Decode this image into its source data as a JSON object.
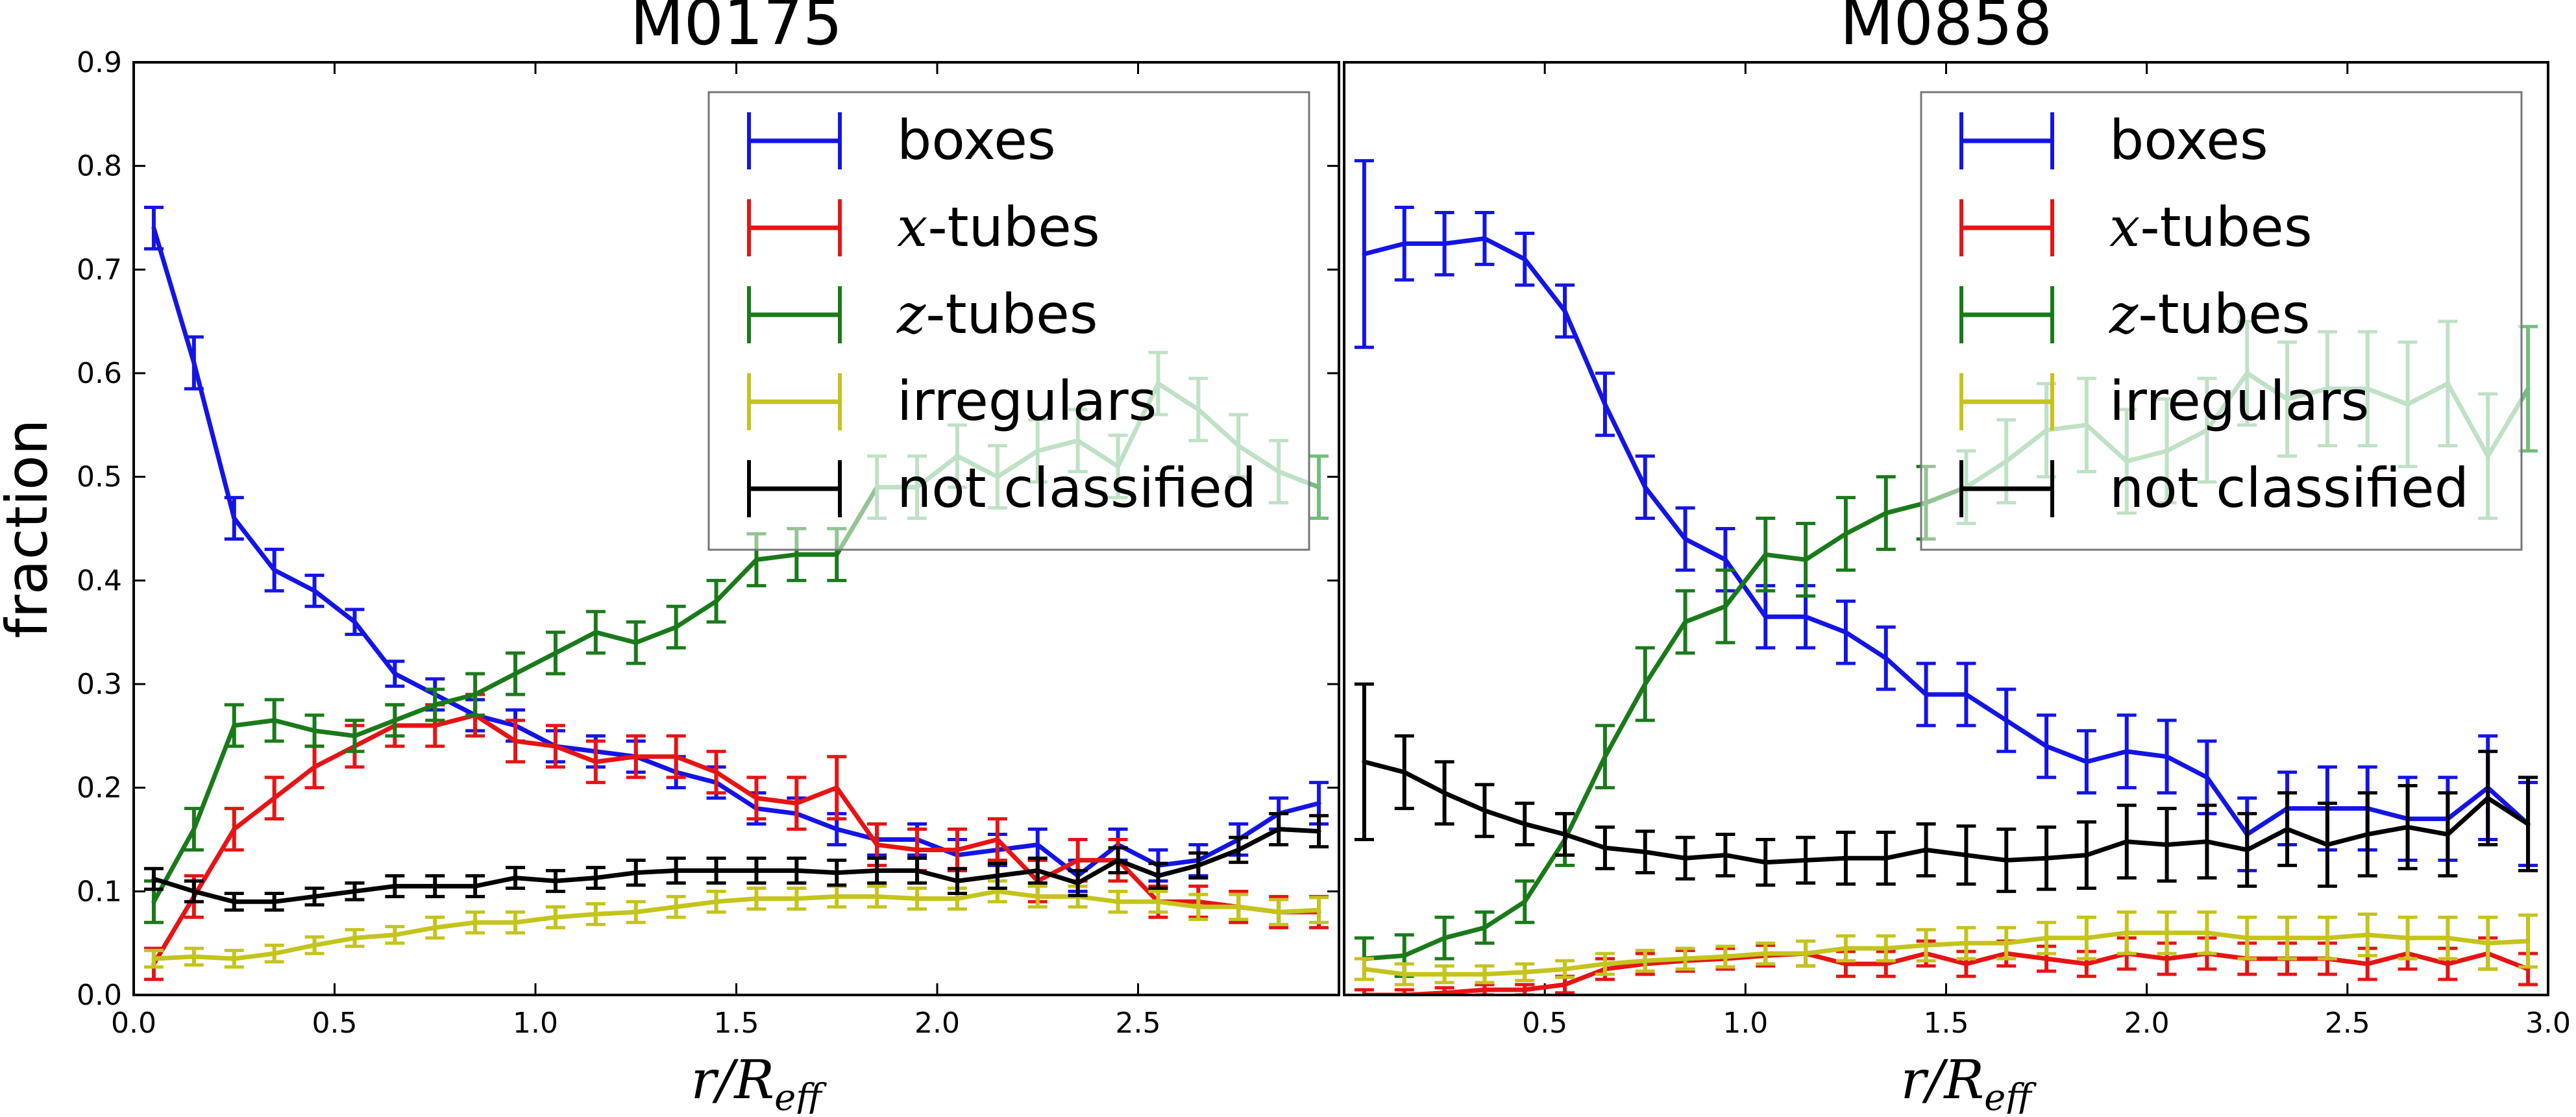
{
  "colors": {
    "boxes": "#1414e6",
    "x_tubes": "#e61414",
    "z_tubes": "#1a7a1a",
    "z_tubes_light": "#72bd80",
    "irregulars": "#c4c41c",
    "not_classified": "#000000"
  },
  "chart_data": [
    {
      "type": "line",
      "title": "M0175",
      "xlabel": "r/R",
      "xlabel_sub": "eff",
      "ylabel": "fraction",
      "xlim": [
        0.0,
        3.0
      ],
      "ylim": [
        0.0,
        0.9
      ],
      "xticks": [
        "0.0",
        "0.5",
        "1.0",
        "1.5",
        "2.0",
        "2.5"
      ],
      "yticks": [
        "0.0",
        "0.1",
        "0.2",
        "0.3",
        "0.4",
        "0.5",
        "0.6",
        "0.7",
        "0.8",
        "0.9"
      ],
      "legend_position": "top-right",
      "x": [
        0.05,
        0.15,
        0.25,
        0.35,
        0.45,
        0.55,
        0.65,
        0.75,
        0.85,
        0.95,
        1.05,
        1.15,
        1.25,
        1.35,
        1.45,
        1.55,
        1.65,
        1.75,
        1.85,
        1.95,
        2.05,
        2.15,
        2.25,
        2.35,
        2.45,
        2.55,
        2.65,
        2.75,
        2.85,
        2.95
      ],
      "series": [
        {
          "name": "boxes",
          "math_prefix": "",
          "label": "boxes",
          "color_key": "boxes",
          "values": [
            0.74,
            0.61,
            0.46,
            0.41,
            0.39,
            0.36,
            0.31,
            0.29,
            0.27,
            0.26,
            0.24,
            0.235,
            0.23,
            0.215,
            0.205,
            0.18,
            0.175,
            0.16,
            0.15,
            0.15,
            0.135,
            0.14,
            0.145,
            0.115,
            0.145,
            0.125,
            0.13,
            0.15,
            0.175,
            0.185
          ],
          "errors": [
            0.02,
            0.025,
            0.02,
            0.02,
            0.015,
            0.012,
            0.012,
            0.015,
            0.015,
            0.015,
            0.015,
            0.015,
            0.015,
            0.015,
            0.015,
            0.015,
            0.015,
            0.015,
            0.015,
            0.015,
            0.015,
            0.015,
            0.015,
            0.015,
            0.015,
            0.015,
            0.015,
            0.015,
            0.015,
            0.02
          ]
        },
        {
          "name": "x-tubes",
          "math_prefix": "x",
          "label": "-tubes",
          "color_key": "x_tubes",
          "values": [
            0.03,
            0.095,
            0.16,
            0.19,
            0.22,
            0.24,
            0.26,
            0.26,
            0.27,
            0.245,
            0.24,
            0.225,
            0.23,
            0.23,
            0.215,
            0.19,
            0.185,
            0.2,
            0.145,
            0.14,
            0.14,
            0.15,
            0.11,
            0.13,
            0.13,
            0.09,
            0.09,
            0.085,
            0.08,
            0.08
          ],
          "errors": [
            0.015,
            0.02,
            0.02,
            0.02,
            0.02,
            0.02,
            0.02,
            0.02,
            0.02,
            0.02,
            0.02,
            0.02,
            0.02,
            0.02,
            0.02,
            0.02,
            0.025,
            0.03,
            0.02,
            0.02,
            0.02,
            0.02,
            0.02,
            0.02,
            0.02,
            0.015,
            0.015,
            0.015,
            0.015,
            0.015
          ]
        },
        {
          "name": "z-tubes",
          "math_prefix": "z",
          "label": "-tubes",
          "color_key": "z_tubes",
          "light_from_x": 1.8,
          "values": [
            0.09,
            0.16,
            0.26,
            0.265,
            0.255,
            0.25,
            0.265,
            0.28,
            0.29,
            0.31,
            0.33,
            0.35,
            0.34,
            0.355,
            0.38,
            0.42,
            0.425,
            0.425,
            0.49,
            0.49,
            0.52,
            0.5,
            0.525,
            0.535,
            0.51,
            0.59,
            0.565,
            0.53,
            0.505,
            0.49
          ],
          "errors": [
            0.02,
            0.02,
            0.02,
            0.02,
            0.015,
            0.015,
            0.015,
            0.015,
            0.02,
            0.02,
            0.02,
            0.02,
            0.02,
            0.02,
            0.02,
            0.025,
            0.025,
            0.025,
            0.03,
            0.03,
            0.03,
            0.03,
            0.03,
            0.03,
            0.03,
            0.03,
            0.03,
            0.03,
            0.03,
            0.03
          ]
        },
        {
          "name": "irregulars",
          "math_prefix": "",
          "label": "irregulars",
          "color_key": "irregulars",
          "values": [
            0.035,
            0.037,
            0.035,
            0.04,
            0.048,
            0.055,
            0.058,
            0.065,
            0.07,
            0.07,
            0.075,
            0.078,
            0.08,
            0.085,
            0.09,
            0.093,
            0.093,
            0.095,
            0.095,
            0.093,
            0.093,
            0.1,
            0.095,
            0.095,
            0.09,
            0.09,
            0.085,
            0.085,
            0.08,
            0.082
          ],
          "errors": [
            0.008,
            0.008,
            0.008,
            0.008,
            0.008,
            0.008,
            0.008,
            0.01,
            0.01,
            0.01,
            0.01,
            0.01,
            0.01,
            0.01,
            0.01,
            0.01,
            0.01,
            0.01,
            0.01,
            0.01,
            0.01,
            0.01,
            0.01,
            0.01,
            0.01,
            0.01,
            0.012,
            0.012,
            0.012,
            0.012
          ]
        },
        {
          "name": "not classified",
          "math_prefix": "",
          "label": "not classified",
          "color_key": "not_classified",
          "values": [
            0.112,
            0.1,
            0.09,
            0.09,
            0.095,
            0.1,
            0.105,
            0.105,
            0.105,
            0.113,
            0.11,
            0.113,
            0.118,
            0.12,
            0.12,
            0.12,
            0.12,
            0.118,
            0.12,
            0.12,
            0.11,
            0.115,
            0.12,
            0.108,
            0.13,
            0.115,
            0.125,
            0.14,
            0.16,
            0.158
          ],
          "errors": [
            0.01,
            0.01,
            0.008,
            0.008,
            0.008,
            0.008,
            0.01,
            0.01,
            0.01,
            0.01,
            0.01,
            0.01,
            0.012,
            0.012,
            0.012,
            0.012,
            0.012,
            0.012,
            0.012,
            0.012,
            0.012,
            0.012,
            0.012,
            0.012,
            0.012,
            0.012,
            0.012,
            0.012,
            0.015,
            0.015
          ]
        }
      ]
    },
    {
      "type": "line",
      "title": "M0858",
      "xlabel": "r/R",
      "xlabel_sub": "eff",
      "ylabel": "",
      "xlim": [
        0.0,
        3.0
      ],
      "ylim": [
        0.0,
        0.9
      ],
      "xticks": [
        "0.5",
        "1.0",
        "1.5",
        "2.0",
        "2.5",
        "3.0"
      ],
      "yticks": [],
      "legend_position": "top-right",
      "x": [
        0.05,
        0.15,
        0.25,
        0.35,
        0.45,
        0.55,
        0.65,
        0.75,
        0.85,
        0.95,
        1.05,
        1.15,
        1.25,
        1.35,
        1.45,
        1.55,
        1.65,
        1.75,
        1.85,
        1.95,
        2.05,
        2.15,
        2.25,
        2.35,
        2.45,
        2.55,
        2.65,
        2.75,
        2.85,
        2.95
      ],
      "series": [
        {
          "name": "boxes",
          "math_prefix": "",
          "label": "boxes",
          "color_key": "boxes",
          "values": [
            0.715,
            0.725,
            0.725,
            0.73,
            0.71,
            0.66,
            0.57,
            0.49,
            0.44,
            0.42,
            0.365,
            0.365,
            0.35,
            0.325,
            0.29,
            0.29,
            0.265,
            0.24,
            0.225,
            0.235,
            0.23,
            0.21,
            0.155,
            0.18,
            0.18,
            0.18,
            0.17,
            0.17,
            0.2,
            0.165
          ],
          "errors": [
            0.09,
            0.035,
            0.03,
            0.025,
            0.025,
            0.025,
            0.03,
            0.03,
            0.03,
            0.03,
            0.03,
            0.03,
            0.03,
            0.03,
            0.03,
            0.03,
            0.03,
            0.03,
            0.03,
            0.035,
            0.035,
            0.035,
            0.035,
            0.035,
            0.04,
            0.04,
            0.04,
            0.04,
            0.05,
            0.04
          ]
        },
        {
          "name": "x-tubes",
          "math_prefix": "x",
          "label": "-tubes",
          "color_key": "x_tubes",
          "values": [
            0.0,
            0.0,
            0.002,
            0.005,
            0.005,
            0.01,
            0.025,
            0.03,
            0.033,
            0.035,
            0.038,
            0.04,
            0.03,
            0.03,
            0.04,
            0.03,
            0.04,
            0.035,
            0.03,
            0.04,
            0.035,
            0.04,
            0.035,
            0.035,
            0.035,
            0.03,
            0.04,
            0.03,
            0.04,
            0.025
          ],
          "errors": [
            0.005,
            0.005,
            0.005,
            0.005,
            0.005,
            0.008,
            0.01,
            0.01,
            0.01,
            0.01,
            0.01,
            0.012,
            0.012,
            0.012,
            0.012,
            0.012,
            0.012,
            0.012,
            0.012,
            0.015,
            0.015,
            0.015,
            0.015,
            0.015,
            0.015,
            0.015,
            0.015,
            0.015,
            0.015,
            0.015
          ]
        },
        {
          "name": "z-tubes",
          "math_prefix": "z",
          "label": "-tubes",
          "color_key": "z_tubes",
          "light_from_x": 1.5,
          "values": [
            0.035,
            0.038,
            0.055,
            0.065,
            0.09,
            0.15,
            0.23,
            0.3,
            0.36,
            0.375,
            0.425,
            0.42,
            0.445,
            0.465,
            0.475,
            0.49,
            0.515,
            0.545,
            0.55,
            0.515,
            0.525,
            0.545,
            0.6,
            0.575,
            0.585,
            0.585,
            0.57,
            0.59,
            0.52,
            0.585
          ],
          "errors": [
            0.02,
            0.02,
            0.02,
            0.015,
            0.02,
            0.025,
            0.03,
            0.035,
            0.03,
            0.035,
            0.035,
            0.035,
            0.035,
            0.035,
            0.035,
            0.035,
            0.04,
            0.045,
            0.045,
            0.05,
            0.05,
            0.05,
            0.05,
            0.055,
            0.055,
            0.055,
            0.06,
            0.06,
            0.06,
            0.06
          ]
        },
        {
          "name": "irregulars",
          "math_prefix": "",
          "label": "irregulars",
          "color_key": "irregulars",
          "values": [
            0.025,
            0.02,
            0.02,
            0.02,
            0.022,
            0.025,
            0.03,
            0.033,
            0.035,
            0.037,
            0.04,
            0.04,
            0.045,
            0.045,
            0.048,
            0.05,
            0.05,
            0.055,
            0.055,
            0.06,
            0.06,
            0.06,
            0.055,
            0.055,
            0.055,
            0.058,
            0.055,
            0.055,
            0.05,
            0.052
          ],
          "errors": [
            0.01,
            0.01,
            0.008,
            0.008,
            0.008,
            0.008,
            0.01,
            0.01,
            0.01,
            0.01,
            0.01,
            0.012,
            0.012,
            0.012,
            0.015,
            0.015,
            0.015,
            0.015,
            0.02,
            0.02,
            0.02,
            0.02,
            0.02,
            0.02,
            0.02,
            0.02,
            0.02,
            0.02,
            0.025,
            0.025
          ]
        },
        {
          "name": "not classified",
          "math_prefix": "",
          "label": "not classified",
          "color_key": "not_classified",
          "values": [
            0.225,
            0.215,
            0.195,
            0.178,
            0.165,
            0.155,
            0.142,
            0.138,
            0.132,
            0.135,
            0.128,
            0.13,
            0.132,
            0.132,
            0.14,
            0.135,
            0.13,
            0.132,
            0.135,
            0.148,
            0.145,
            0.148,
            0.14,
            0.16,
            0.145,
            0.155,
            0.162,
            0.155,
            0.19,
            0.165
          ],
          "errors": [
            0.075,
            0.035,
            0.03,
            0.025,
            0.02,
            0.02,
            0.02,
            0.02,
            0.02,
            0.02,
            0.022,
            0.022,
            0.025,
            0.025,
            0.025,
            0.028,
            0.03,
            0.03,
            0.032,
            0.035,
            0.035,
            0.035,
            0.035,
            0.035,
            0.04,
            0.04,
            0.04,
            0.04,
            0.045,
            0.045
          ]
        }
      ]
    }
  ]
}
